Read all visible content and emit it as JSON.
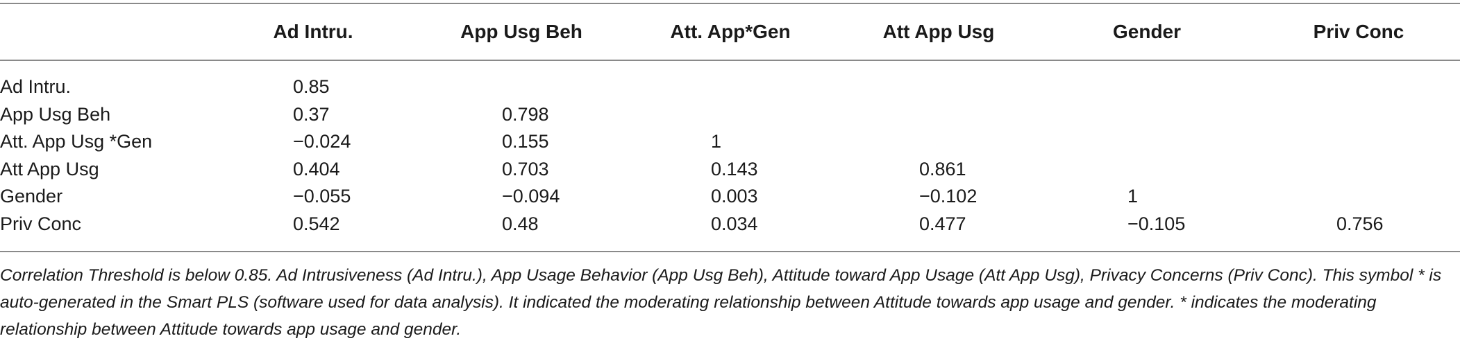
{
  "table": {
    "header": {
      "corner": "",
      "columns": [
        "Ad Intru.",
        "App Usg Beh",
        "Att. App*Gen",
        "Att App Usg",
        "Gender",
        "Priv Conc"
      ]
    },
    "rows": [
      {
        "label": "Ad Intru.",
        "values": [
          "0.85",
          "",
          "",
          "",
          "",
          ""
        ]
      },
      {
        "label": "App Usg Beh",
        "values": [
          "0.37",
          "0.798",
          "",
          "",
          "",
          ""
        ]
      },
      {
        "label": "Att. App Usg *Gen",
        "values": [
          "−0.024",
          "0.155",
          "1",
          "",
          "",
          ""
        ]
      },
      {
        "label": "Att App Usg",
        "values": [
          "0.404",
          "0.703",
          "0.143",
          "0.861",
          "",
          ""
        ]
      },
      {
        "label": "Gender",
        "values": [
          "−0.055",
          "−0.094",
          "0.003",
          "−0.102",
          "1",
          ""
        ]
      },
      {
        "label": "Priv Conc",
        "values": [
          "0.542",
          "0.48",
          "0.034",
          "0.477",
          "−0.105",
          "0.756"
        ]
      }
    ],
    "footnote": "Correlation Threshold is below 0.85. Ad Intrusiveness (Ad Intru.), App Usage Behavior (App Usg Beh), Attitude toward App Usage (Att App Usg), Privacy Concerns (Priv Conc). This symbol * is auto-generated in the Smart PLS (software used for data analysis). It indicated the moderating relationship between Attitude towards app usage and gender. * indicates the moderating relationship between Attitude towards app usage and gender."
  }
}
